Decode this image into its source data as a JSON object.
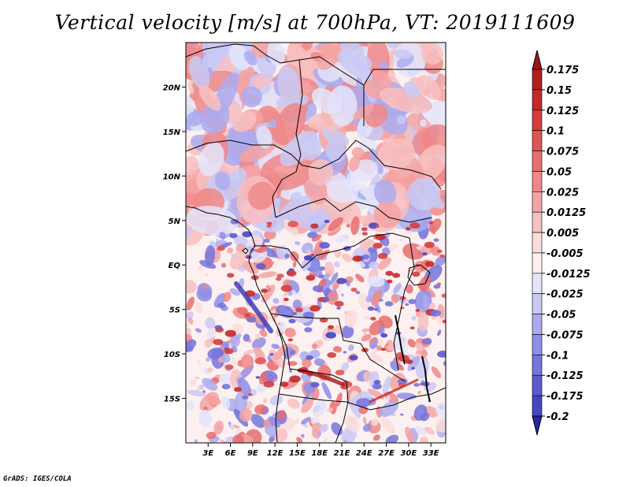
{
  "title": "Vertical velocity [m/s] at 700hPa, VT: 2019111609",
  "credit": "GrADS: IGES/COLA",
  "map": {
    "lon_range": [
      0,
      35
    ],
    "lat_range": [
      -20,
      25
    ],
    "lat_ticks": [
      {
        "value": 20,
        "label": "20N"
      },
      {
        "value": 15,
        "label": "15N"
      },
      {
        "value": 10,
        "label": "10N"
      },
      {
        "value": 5,
        "label": "5N"
      },
      {
        "value": 0,
        "label": "EQ"
      },
      {
        "value": -5,
        "label": "5S"
      },
      {
        "value": -10,
        "label": "10S"
      },
      {
        "value": -15,
        "label": "15S"
      }
    ],
    "lon_ticks": [
      {
        "value": 3,
        "label": "3E"
      },
      {
        "value": 6,
        "label": "6E"
      },
      {
        "value": 9,
        "label": "9E"
      },
      {
        "value": 12,
        "label": "12E"
      },
      {
        "value": 15,
        "label": "15E"
      },
      {
        "value": 18,
        "label": "18E"
      },
      {
        "value": 21,
        "label": "21E"
      },
      {
        "value": 24,
        "label": "24E"
      },
      {
        "value": 27,
        "label": "27E"
      },
      {
        "value": 30,
        "label": "30E"
      },
      {
        "value": 33,
        "label": "33E"
      }
    ]
  },
  "colorbar": {
    "levels": [
      {
        "label": "0.175",
        "color": "#b01e1e"
      },
      {
        "label": "0.15",
        "color": "#c42a2a"
      },
      {
        "label": "0.125",
        "color": "#d53c3c"
      },
      {
        "label": "0.1",
        "color": "#e05454"
      },
      {
        "label": "0.075",
        "color": "#e86e6e"
      },
      {
        "label": "0.05",
        "color": "#ef8888"
      },
      {
        "label": "0.025",
        "color": "#f4a3a3"
      },
      {
        "label": "0.0125",
        "color": "#f8c0c0"
      },
      {
        "label": "0.005",
        "color": "#fbdcdc"
      },
      {
        "label": "-0.005",
        "color": "#fdf0f0"
      },
      {
        "label": "-0.0125",
        "color": "#e4e4fa"
      },
      {
        "label": "-0.025",
        "color": "#c9c9f4"
      },
      {
        "label": "-0.05",
        "color": "#ababee"
      },
      {
        "label": "-0.075",
        "color": "#8e8ee6"
      },
      {
        "label": "-0.1",
        "color": "#7474dc"
      },
      {
        "label": "-0.125",
        "color": "#5c5cd0"
      },
      {
        "label": "-0.175",
        "color": "#4646c2"
      },
      {
        "label": "-0.2",
        "color": "#3434b4"
      }
    ],
    "top_triangle_color": "#a01818",
    "bottom_triangle_color": "#2626a6"
  }
}
